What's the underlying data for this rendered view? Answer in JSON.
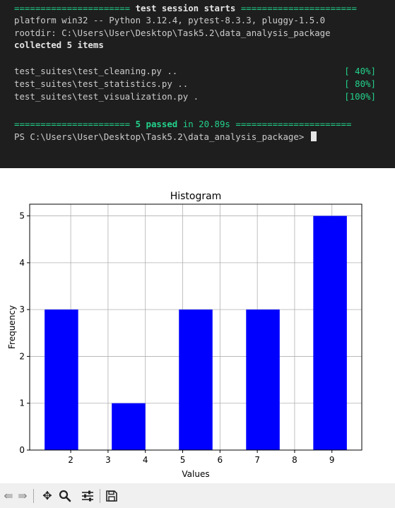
{
  "terminal": {
    "session_header": {
      "left_rule": "======================",
      "title": "test session starts",
      "right_rule": "======================"
    },
    "platform_line": "platform win32 -- Python 3.12.4, pytest-8.3.3, pluggy-1.5.0",
    "rootdir_line": "rootdir: C:\\Users\\User\\Desktop\\Task5.2\\data_analysis_package",
    "collected_line": "collected 5 items",
    "results": [
      {
        "file": "test_suites\\test_cleaning.py ..",
        "progress": "[ 40%]"
      },
      {
        "file": "test_suites\\test_statistics.py ..",
        "progress": "[ 80%]"
      },
      {
        "file": "test_suites\\test_visualization.py .",
        "progress": "[100%]"
      }
    ],
    "summary": {
      "left_rule": "======================",
      "passed": "5 passed",
      "duration": "in 20.89s",
      "right_rule": "======================"
    },
    "prompt": "PS C:\\Users\\User\\Desktop\\Task5.2\\data_analysis_package>"
  },
  "chart_data": {
    "type": "bar",
    "title": "Histogram",
    "xlabel": "Values",
    "ylabel": "Frequency",
    "bins": [
      {
        "x0": 1.3,
        "x1": 2.2,
        "count": 3
      },
      {
        "x0": 3.1,
        "x1": 4.0,
        "count": 1
      },
      {
        "x0": 4.9,
        "x1": 5.8,
        "count": 3
      },
      {
        "x0": 6.7,
        "x1": 7.6,
        "count": 3
      },
      {
        "x0": 8.5,
        "x1": 9.4,
        "count": 5
      }
    ],
    "xticks": [
      2,
      3,
      4,
      5,
      6,
      7,
      8,
      9
    ],
    "yticks": [
      0,
      1,
      2,
      3,
      4,
      5
    ],
    "xlim": [
      0.9,
      9.8
    ],
    "ylim": [
      0,
      5.25
    ],
    "grid": true,
    "bar_color": "#0000ff"
  },
  "toolbar": {
    "icons": [
      "back-arrow-icon",
      "forward-arrow-icon",
      "pan-icon",
      "zoom-icon",
      "configure-subplots-icon",
      "save-icon"
    ]
  }
}
